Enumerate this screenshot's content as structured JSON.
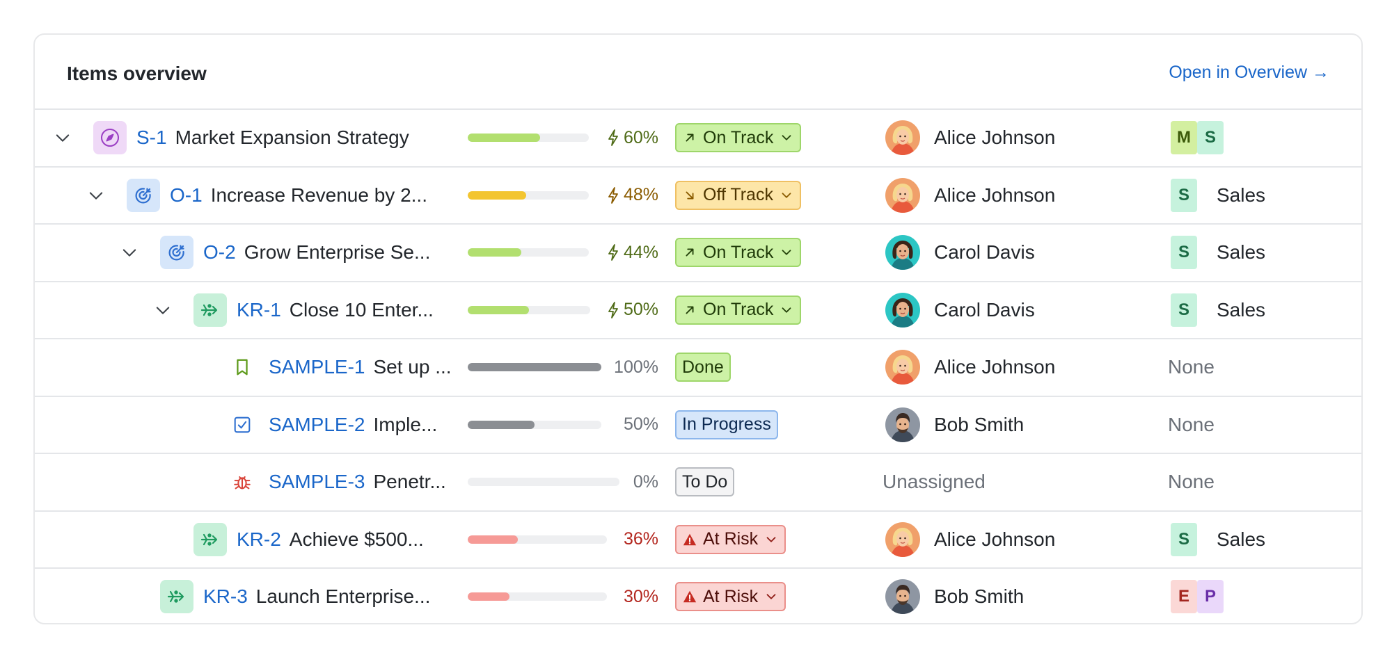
{
  "header": {
    "title": "Items overview",
    "open_link": "Open in Overview →"
  },
  "colors": {
    "link": "#1a66c9",
    "progress_green": "#b2df6f",
    "progress_yellow": "#f3c530",
    "progress_gray": "#8b8e93",
    "progress_red": "#f69a96"
  },
  "rows": [
    {
      "chevron": true,
      "type_icon": "compass-icon",
      "key": "S-1",
      "name": "Market Expansion Strategy",
      "progress": 60,
      "progress_label": "60%",
      "bolt": true,
      "progress_color": "green",
      "status": "On Track",
      "status_kind": "ontrack",
      "status_icon": "arrow-up-right-icon",
      "status_dropdown": true,
      "assignee": "Alice Johnson",
      "avatar": "alice",
      "teams": [
        "M",
        "S"
      ],
      "team_label": ""
    },
    {
      "chevron": true,
      "type_icon": "target-icon",
      "key": "O-1",
      "name": "Increase Revenue by 2...",
      "progress": 48,
      "progress_label": "48%",
      "bolt": true,
      "progress_color": "yellow",
      "status": "Off Track",
      "status_kind": "offtrack",
      "status_icon": "arrow-down-right-icon",
      "status_dropdown": true,
      "assignee": "Alice Johnson",
      "avatar": "alice",
      "teams": [
        "S"
      ],
      "team_label": "Sales"
    },
    {
      "chevron": true,
      "type_icon": "target-icon",
      "key": "O-2",
      "name": "Grow Enterprise Se...",
      "progress": 44,
      "progress_label": "44%",
      "bolt": true,
      "progress_color": "green",
      "status": "On Track",
      "status_kind": "ontrack",
      "status_icon": "arrow-up-right-icon",
      "status_dropdown": true,
      "assignee": "Carol Davis",
      "avatar": "carol",
      "teams": [
        "S"
      ],
      "team_label": "Sales"
    },
    {
      "chevron": true,
      "type_icon": "key-result-icon",
      "key": "KR-1",
      "name": "Close 10 Enter...",
      "progress": 50,
      "progress_label": "50%",
      "bolt": true,
      "progress_color": "green",
      "status": "On Track",
      "status_kind": "ontrack",
      "status_icon": "arrow-up-right-icon",
      "status_dropdown": true,
      "assignee": "Carol Davis",
      "avatar": "carol",
      "teams": [
        "S"
      ],
      "team_label": "Sales"
    },
    {
      "chevron": false,
      "type_icon": "bookmark-icon",
      "key": "SAMPLE-1",
      "name": "Set up ...",
      "progress": 100,
      "progress_label": "100%",
      "bolt": false,
      "progress_color": "gray",
      "status": "Done",
      "status_kind": "done",
      "status_icon": "",
      "status_dropdown": false,
      "assignee": "Alice Johnson",
      "avatar": "alice",
      "teams": [],
      "team_label": "None"
    },
    {
      "chevron": false,
      "type_icon": "checkbox-icon",
      "key": "SAMPLE-2",
      "name": "Imple...",
      "progress": 50,
      "progress_label": "50%",
      "bolt": false,
      "progress_color": "gray",
      "status": "In Progress",
      "status_kind": "progress",
      "status_icon": "",
      "status_dropdown": false,
      "assignee": "Bob Smith",
      "avatar": "bob",
      "teams": [],
      "team_label": "None"
    },
    {
      "chevron": false,
      "type_icon": "bug-icon",
      "key": "SAMPLE-3",
      "name": "Penetr...",
      "progress": 0,
      "progress_label": "0%",
      "bolt": false,
      "progress_color": "gray",
      "status": "To Do",
      "status_kind": "todo",
      "status_icon": "",
      "status_dropdown": false,
      "assignee": "Unassigned",
      "avatar": "",
      "teams": [],
      "team_label": "None"
    },
    {
      "chevron": false,
      "type_icon": "key-result-icon",
      "key": "KR-2",
      "name": "Achieve $500...",
      "progress": 36,
      "progress_label": "36%",
      "bolt": false,
      "progress_color": "red",
      "status": "At Risk",
      "status_kind": "risk",
      "status_icon": "warning-icon",
      "status_dropdown": true,
      "assignee": "Alice Johnson",
      "avatar": "alice",
      "teams": [
        "S"
      ],
      "team_label": "Sales"
    },
    {
      "chevron": false,
      "type_icon": "key-result-icon",
      "key": "KR-3",
      "name": "Launch Enterprise...",
      "progress": 30,
      "progress_label": "30%",
      "bolt": false,
      "progress_color": "red",
      "status": "At Risk",
      "status_kind": "risk",
      "status_icon": "warning-icon",
      "status_dropdown": true,
      "assignee": "Bob Smith",
      "avatar": "bob",
      "teams": [
        "E",
        "P"
      ],
      "team_label": ""
    }
  ]
}
